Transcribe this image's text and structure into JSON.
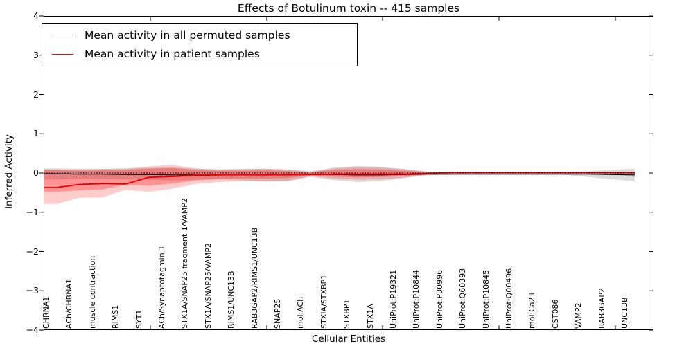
{
  "title": "Effects of Botulinum toxin -- 415 samples",
  "chart_data": {
    "type": "line",
    "title": "Effects of Botulinum toxin -- 415 samples",
    "xlabel": "Cellular Entities",
    "ylabel": "Inferred Activity",
    "ylim": [
      -4,
      4
    ],
    "ytick_labels": [
      "4",
      "3",
      "2",
      "1",
      "0",
      "−1",
      "−2",
      "−3",
      "−4"
    ],
    "ytick_values": [
      4,
      3,
      2,
      1,
      0,
      -1,
      -2,
      -3,
      -4
    ],
    "grid": false,
    "legend_position": "upper left",
    "zero_reference_line": 0,
    "categories": [
      "CHRNA1",
      "ACh/CHRNA1",
      "muscle contraction",
      "RIMS1",
      "SYT1",
      "ACh/Synaptotagmin 1",
      "STX1A/SNAP25 fragment 1/VAMP2",
      "STX1A/SNAP25/VAMP2",
      "RIMS1/UNC13B",
      "RAB3GAP2/RIMS1/UNC13B",
      "SNAP25",
      "mol:ACh",
      "STXIA/STXBP1",
      "STXBP1",
      "STX1A",
      "UniProt:P19321",
      "UniProt:P10844",
      "UniProt:P30996",
      "UniProt:Q60393",
      "UniProt:P10845",
      "UniProt:Q00496",
      "mol:Ca2+",
      "CST086",
      "VAMP2",
      "RAB3GAP2",
      "UNC13B"
    ],
    "series": [
      {
        "name": "Mean activity in all permuted samples",
        "color": "#000000",
        "band_color": "rgba(90,90,90,0.22)",
        "values": [
          -0.02,
          -0.03,
          -0.03,
          -0.04,
          -0.04,
          -0.05,
          -0.05,
          -0.05,
          -0.05,
          -0.05,
          -0.05,
          -0.04,
          -0.04,
          -0.05,
          -0.05,
          -0.04,
          -0.03,
          -0.03,
          -0.03,
          -0.03,
          -0.03,
          -0.03,
          -0.03,
          -0.03,
          -0.04,
          -0.05
        ],
        "band_upper": [
          0.12,
          0.11,
          0.11,
          0.12,
          0.13,
          0.14,
          0.11,
          0.09,
          0.1,
          0.11,
          0.09,
          0.04,
          0.14,
          0.18,
          0.16,
          0.1,
          0.04,
          0.03,
          0.03,
          0.03,
          0.03,
          0.03,
          0.03,
          0.05,
          0.08,
          0.11
        ],
        "band_lower": [
          -0.16,
          -0.15,
          -0.15,
          -0.16,
          -0.17,
          -0.19,
          -0.17,
          -0.16,
          -0.18,
          -0.22,
          -0.2,
          -0.1,
          -0.18,
          -0.23,
          -0.21,
          -0.13,
          -0.06,
          -0.05,
          -0.05,
          -0.05,
          -0.05,
          -0.05,
          -0.05,
          -0.1,
          -0.16,
          -0.21
        ]
      },
      {
        "name": "Mean activity in patient samples",
        "color": "#e60000",
        "band_color": "rgba(255,0,0,0.20)",
        "inner_band_color": "rgba(255,0,0,0.28)",
        "values": [
          -0.37,
          -0.29,
          -0.27,
          -0.28,
          -0.11,
          -0.09,
          -0.06,
          -0.05,
          -0.04,
          -0.05,
          -0.04,
          -0.04,
          -0.03,
          -0.03,
          -0.03,
          -0.03,
          -0.01,
          0.01,
          0.01,
          0.01,
          0.01,
          0.01,
          0.01,
          0.01,
          0.01,
          0.01
        ],
        "band_upper": [
          0.09,
          0.09,
          0.1,
          0.11,
          0.17,
          0.21,
          0.12,
          0.09,
          0.1,
          0.11,
          0.09,
          0.035,
          0.12,
          0.15,
          0.14,
          0.1,
          0.035,
          0.02,
          0.02,
          0.02,
          0.02,
          0.02,
          0.02,
          0.02,
          0.02,
          0.02
        ],
        "band_lower": [
          -0.79,
          -0.63,
          -0.62,
          -0.43,
          -0.48,
          -0.4,
          -0.28,
          -0.23,
          -0.21,
          -0.21,
          -0.21,
          -0.08,
          -0.14,
          -0.17,
          -0.16,
          -0.12,
          -0.05,
          -0.03,
          -0.02,
          -0.02,
          -0.02,
          -0.02,
          -0.02,
          -0.02,
          -0.02,
          -0.02
        ],
        "inner_band_upper": [
          0.07,
          0.06,
          0.07,
          0.08,
          0.11,
          0.13,
          0.08,
          0.06,
          0.06,
          0.07,
          0.05,
          0.02,
          0.08,
          0.1,
          0.09,
          0.06,
          0.02,
          0.015,
          0.015,
          0.015,
          0.015,
          0.015,
          0.015,
          0.015,
          0.015,
          0.015
        ],
        "inner_band_lower": [
          -0.48,
          -0.44,
          -0.42,
          -0.3,
          -0.32,
          -0.27,
          -0.19,
          -0.15,
          -0.14,
          -0.14,
          -0.13,
          -0.06,
          -0.09,
          -0.11,
          -0.1,
          -0.08,
          -0.03,
          -0.02,
          -0.015,
          -0.015,
          -0.015,
          -0.015,
          -0.015,
          -0.015,
          -0.015,
          -0.015
        ]
      }
    ]
  },
  "legend": {
    "items": [
      {
        "label": "Mean activity in all permuted samples",
        "color": "#000000"
      },
      {
        "label": "Mean activity in patient samples",
        "color": "#ff0000"
      }
    ]
  }
}
